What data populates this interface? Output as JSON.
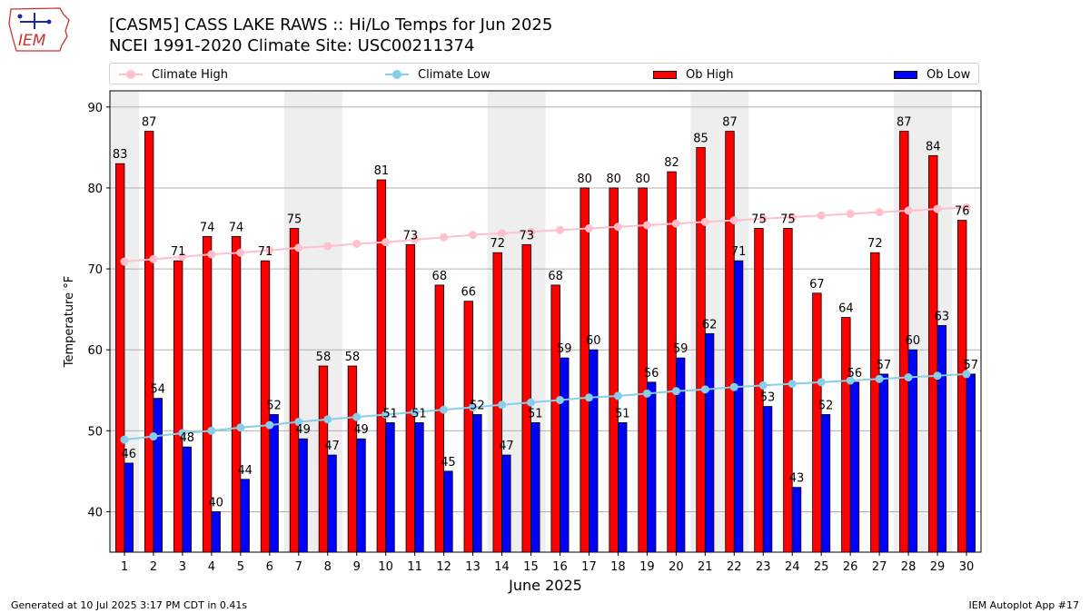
{
  "header": {
    "logo_text": "IEM",
    "title_line1": "[CASM5] CASS LAKE RAWS :: Hi/Lo Temps for Jun 2025",
    "title_line2": "NCEI 1991-2020 Climate Site: USC00211374"
  },
  "legend": {
    "climate_high": "Climate High",
    "climate_low": "Climate Low",
    "ob_high": "Ob High",
    "ob_low": "Ob Low"
  },
  "colors": {
    "ob_high": "#ff0000",
    "ob_low": "#0000ff",
    "climate_high": "#ffc0cb",
    "climate_low": "#87ceeb",
    "weekend_band": "#eeeeee"
  },
  "chart_data": {
    "type": "bar",
    "title": "[CASM5] CASS LAKE RAWS :: Hi/Lo Temps for Jun 2025",
    "xlabel": "June 2025",
    "ylabel": "Temperature °F",
    "ylim": [
      35,
      92
    ],
    "yticks": [
      40,
      50,
      60,
      70,
      80,
      90
    ],
    "grid": true,
    "categories": [
      "1",
      "2",
      "3",
      "4",
      "5",
      "6",
      "7",
      "8",
      "9",
      "10",
      "11",
      "12",
      "13",
      "14",
      "15",
      "16",
      "17",
      "18",
      "19",
      "20",
      "21",
      "22",
      "23",
      "24",
      "25",
      "26",
      "27",
      "28",
      "29",
      "30"
    ],
    "series": [
      {
        "name": "Ob High",
        "kind": "bar",
        "values": [
          83,
          87,
          71,
          74,
          74,
          71,
          75,
          58,
          58,
          81,
          73,
          68,
          66,
          72,
          73,
          68,
          80,
          80,
          80,
          82,
          85,
          87,
          75,
          75,
          67,
          64,
          72,
          87,
          84,
          76
        ]
      },
      {
        "name": "Ob Low",
        "kind": "bar",
        "values": [
          46,
          54,
          48,
          40,
          44,
          52,
          49,
          47,
          49,
          51,
          51,
          45,
          52,
          47,
          51,
          59,
          60,
          51,
          56,
          59,
          62,
          71,
          53,
          43,
          52,
          56,
          57,
          60,
          63,
          57
        ]
      },
      {
        "name": "Climate High",
        "kind": "line",
        "values": [
          70.9,
          71.2,
          71.5,
          71.8,
          72.0,
          72.3,
          72.6,
          72.8,
          73.1,
          73.3,
          73.6,
          73.9,
          74.2,
          74.4,
          74.6,
          74.8,
          75.0,
          75.2,
          75.4,
          75.6,
          75.8,
          76.0,
          76.2,
          76.4,
          76.6,
          76.8,
          77.0,
          77.2,
          77.4,
          77.6
        ]
      },
      {
        "name": "Climate Low",
        "kind": "line",
        "values": [
          48.9,
          49.3,
          49.7,
          50.0,
          50.4,
          50.7,
          51.1,
          51.4,
          51.7,
          52.0,
          52.3,
          52.6,
          52.9,
          53.2,
          53.5,
          53.8,
          54.1,
          54.3,
          54.6,
          54.9,
          55.1,
          55.4,
          55.6,
          55.8,
          56.0,
          56.2,
          56.4,
          56.6,
          56.8,
          57.0
        ]
      }
    ],
    "weekend_days": [
      1,
      7,
      8,
      14,
      15,
      21,
      22,
      28,
      29
    ]
  },
  "footer": {
    "generated": "Generated at 10 Jul 2025 3:17 PM CDT in 0.41s",
    "app": "IEM Autoplot App #17"
  }
}
